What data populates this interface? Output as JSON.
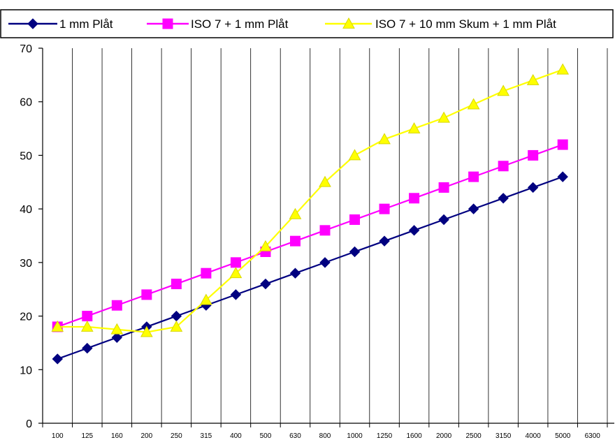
{
  "chart_data": {
    "type": "line",
    "title": "",
    "xlabel": "",
    "ylabel": "",
    "categories": [
      "100",
      "125",
      "160",
      "200",
      "250",
      "315",
      "400",
      "500",
      "630",
      "800",
      "1000",
      "1250",
      "1600",
      "2000",
      "2500",
      "3150",
      "4000",
      "5000",
      "6300"
    ],
    "ylim": [
      0,
      70
    ],
    "yticks": [
      0,
      10,
      20,
      30,
      40,
      50,
      60,
      70
    ],
    "grid": "vertical",
    "legend_position": "top",
    "series": [
      {
        "name": "1 mm Plåt",
        "color": "#000080",
        "marker": "diamond",
        "values": [
          12,
          14,
          16,
          18,
          20,
          22,
          24,
          26,
          28,
          30,
          32,
          34,
          36,
          38,
          40,
          42,
          44,
          46,
          null
        ]
      },
      {
        "name": "ISO 7 + 1 mm Plåt",
        "color": "#FF00FF",
        "marker": "square",
        "values": [
          18,
          20,
          22,
          24,
          26,
          28,
          30,
          32,
          34,
          36,
          38,
          40,
          42,
          44,
          46,
          48,
          50,
          52,
          null
        ]
      },
      {
        "name": "ISO 7 + 10 mm Skum + 1 mm Plåt",
        "color": "#FFFF00",
        "marker": "triangle",
        "values": [
          18,
          18,
          17.5,
          17,
          18,
          23,
          28,
          33,
          39,
          45,
          50,
          53,
          55,
          57,
          59.5,
          62,
          64,
          66,
          null
        ]
      }
    ]
  }
}
